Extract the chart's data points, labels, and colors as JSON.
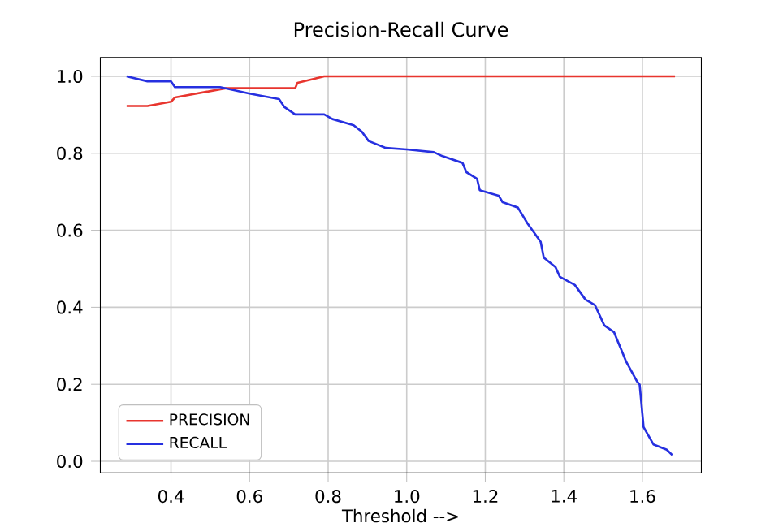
{
  "chart_data": {
    "type": "line",
    "title": "Precision-Recall Curve",
    "xlabel": "Threshold -->",
    "xlim": [
      0.22,
      1.75
    ],
    "ylim": [
      -0.03,
      1.049
    ],
    "xticks": [
      {
        "value": 0.4,
        "label": "0.4"
      },
      {
        "value": 0.6,
        "label": "0.6"
      },
      {
        "value": 0.8,
        "label": "0.8"
      },
      {
        "value": 1.0,
        "label": "1.0"
      },
      {
        "value": 1.2,
        "label": "1.2"
      },
      {
        "value": 1.4,
        "label": "1.4"
      },
      {
        "value": 1.6,
        "label": "1.6"
      }
    ],
    "yticks": [
      {
        "value": 0,
        "label": "0.0"
      },
      {
        "value": 0.2,
        "label": "0.2"
      },
      {
        "value": 0.4,
        "label": "0.4"
      },
      {
        "value": 0.6,
        "label": "0.6"
      },
      {
        "value": 0.8,
        "label": "0.8"
      },
      {
        "value": 1.0,
        "label": "1.0"
      }
    ],
    "grid": true,
    "legend": "bottom left",
    "marker": "none",
    "line_style": "solid",
    "series": [
      {
        "name": "PRECISION",
        "color": "#e8352e",
        "x": [
          0.287,
          0.34,
          0.4,
          0.41,
          0.54,
          0.716,
          0.722,
          0.79,
          1.683
        ],
        "values": [
          0.923,
          0.923,
          0.934,
          0.945,
          0.969,
          0.969,
          0.983,
          1.0,
          1.0
        ]
      },
      {
        "name": "RECALL",
        "color": "#2630e0",
        "x": [
          0.287,
          0.34,
          0.4,
          0.41,
          0.525,
          0.6,
          0.675,
          0.689,
          0.716,
          0.79,
          0.811,
          0.865,
          0.886,
          0.903,
          0.947,
          1.0,
          1.069,
          1.09,
          1.142,
          1.152,
          1.179,
          1.186,
          1.234,
          1.244,
          1.283,
          1.308,
          1.341,
          1.349,
          1.379,
          1.39,
          1.428,
          1.455,
          1.479,
          1.503,
          1.528,
          1.559,
          1.586,
          1.593,
          1.603,
          1.628,
          1.662,
          1.676
        ],
        "values": [
          1.0,
          0.987,
          0.987,
          0.972,
          0.972,
          0.955,
          0.941,
          0.92,
          0.901,
          0.901,
          0.889,
          0.873,
          0.856,
          0.832,
          0.814,
          0.81,
          0.803,
          0.793,
          0.775,
          0.751,
          0.734,
          0.704,
          0.69,
          0.673,
          0.659,
          0.617,
          0.57,
          0.529,
          0.504,
          0.479,
          0.458,
          0.42,
          0.406,
          0.353,
          0.335,
          0.258,
          0.208,
          0.199,
          0.089,
          0.044,
          0.03,
          0.016
        ]
      }
    ]
  }
}
